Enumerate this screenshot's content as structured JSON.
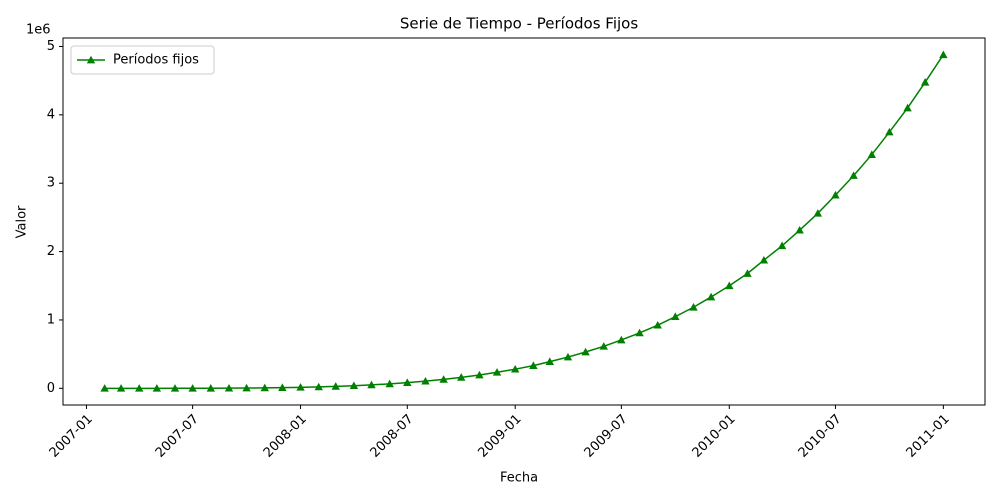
{
  "chart_data": {
    "type": "line",
    "title": "Serie de Tiempo - Períodos Fijos",
    "x_label": "Fecha",
    "y_label": "Valor",
    "y_offset_label": "1e6",
    "x": [
      "2007-02",
      "2007-03",
      "2007-04",
      "2007-05",
      "2007-06",
      "2007-07",
      "2007-08",
      "2007-09",
      "2007-10",
      "2007-11",
      "2007-12",
      "2008-01",
      "2008-02",
      "2008-03",
      "2008-04",
      "2008-05",
      "2008-06",
      "2008-07",
      "2008-08",
      "2008-09",
      "2008-10",
      "2008-11",
      "2008-12",
      "2009-01",
      "2009-02",
      "2009-03",
      "2009-04",
      "2009-05",
      "2009-06",
      "2009-07",
      "2009-08",
      "2009-09",
      "2009-10",
      "2009-11",
      "2009-12",
      "2010-01",
      "2010-02",
      "2010-03",
      "2010-04",
      "2010-05",
      "2010-06",
      "2010-07",
      "2010-08",
      "2010-09",
      "2010-10",
      "2010-11",
      "2010-12",
      "2011-01"
    ],
    "series": [
      {
        "name": "Períodos fijos",
        "color": "#008000",
        "marker": "triangle",
        "values": [
          0,
          1,
          16,
          81,
          256,
          625,
          1296,
          2401,
          4096,
          6561,
          10000,
          14641,
          20736,
          28561,
          38416,
          50625,
          65536,
          83521,
          104976,
          130321,
          160000,
          194481,
          234256,
          279841,
          331776,
          390625,
          456976,
          531441,
          614656,
          707281,
          810000,
          923521,
          1048576,
          1185921,
          1336336,
          1500625,
          1679616,
          1874161,
          2085136,
          2313441,
          2560000,
          2825761,
          3111696,
          3418801,
          3748096,
          4100625,
          4477456,
          4879681
        ]
      }
    ],
    "xlim": [
      "2006-11-22",
      "2011-03-13"
    ],
    "xticks": [
      "2007-01",
      "2007-07",
      "2008-01",
      "2008-07",
      "2009-01",
      "2009-07",
      "2010-01",
      "2010-07",
      "2011-01"
    ],
    "ylim": [
      -244000,
      5124000
    ],
    "yticks": [
      {
        "value": 0,
        "label": "0"
      },
      {
        "value": 1000000,
        "label": "1"
      },
      {
        "value": 2000000,
        "label": "2"
      },
      {
        "value": 3000000,
        "label": "3"
      },
      {
        "value": 4000000,
        "label": "4"
      },
      {
        "value": 5000000,
        "label": "5"
      }
    ],
    "grid": false,
    "legend": "upper left"
  }
}
